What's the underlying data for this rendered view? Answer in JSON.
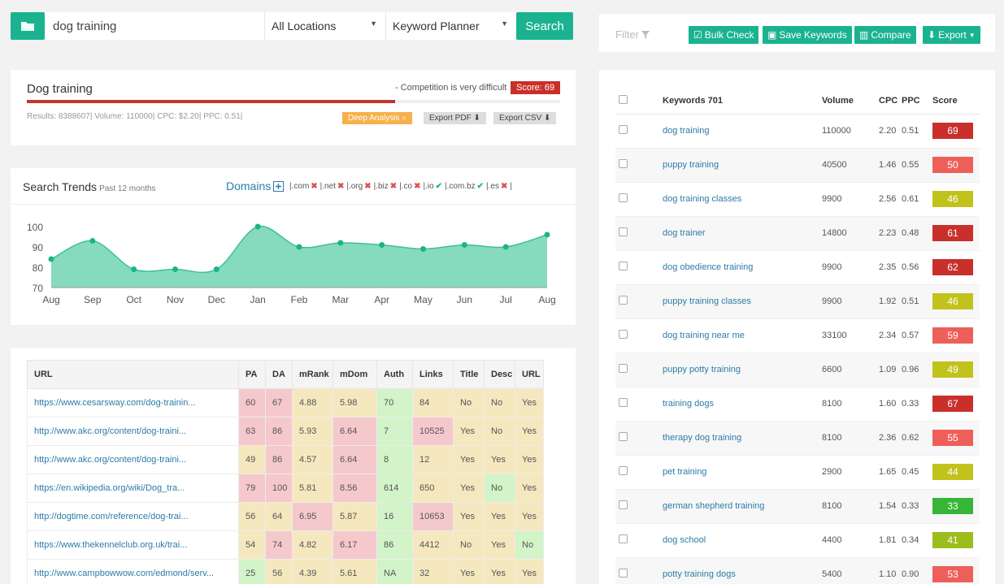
{
  "search": {
    "query": "dog training",
    "location": "All Locations",
    "tool": "Keyword Planner",
    "button": "Search"
  },
  "summary": {
    "keyword": "Dog training",
    "competition": "- Competition is very difficult",
    "score_label": "Score: 69",
    "score_value": 69,
    "stats": "Results: 8388607| Volume: 110000| CPC: $2.20| PPC: 0.51|",
    "buttons": {
      "deep": "Deep Analysis",
      "pdf": "Export PDF",
      "csv": "Export CSV"
    }
  },
  "trends": {
    "title": "Search Trends",
    "subtitle": "Past 12 months",
    "domains_label": "Domains",
    "domains": [
      {
        "name": "|.com",
        "available": false
      },
      {
        "name": "|.net",
        "available": false
      },
      {
        "name": "|.org",
        "available": false
      },
      {
        "name": "|.biz",
        "available": false
      },
      {
        "name": "|.co",
        "available": false
      },
      {
        "name": "|.io",
        "available": true
      },
      {
        "name": "|.com.bz",
        "available": true
      },
      {
        "name": "|.es",
        "available": false
      }
    ],
    "end_bar": "|"
  },
  "chart_data": {
    "type": "area",
    "categories": [
      "Aug",
      "Sep",
      "Oct",
      "Nov",
      "Dec",
      "Jan",
      "Feb",
      "Mar",
      "Apr",
      "May",
      "Jun",
      "Jul",
      "Aug"
    ],
    "values": [
      84,
      93,
      79,
      79,
      79,
      100,
      90,
      92,
      91,
      89,
      91,
      90,
      96
    ],
    "yticks": [
      100,
      90,
      80,
      70
    ],
    "ylim": [
      70,
      100
    ],
    "color": "#7fd9bb",
    "line_color": "#3fbf96",
    "point_color": "#1bb38f"
  },
  "url_table": {
    "headers": [
      "URL",
      "PA",
      "DA",
      "mRank",
      "mDom",
      "Auth",
      "Links",
      "Title",
      "Desc",
      "URL"
    ],
    "rows": [
      [
        "https://www.cesarsway.com/dog-trainin...",
        "60",
        "67",
        "4.88",
        "5.98",
        "70",
        "84",
        "No",
        "No",
        "Yes"
      ],
      [
        "http://www.akc.org/content/dog-traini...",
        "63",
        "86",
        "5.93",
        "6.64",
        "7",
        "10525",
        "Yes",
        "No",
        "Yes"
      ],
      [
        "http://www.akc.org/content/dog-traini...",
        "49",
        "86",
        "4.57",
        "6.64",
        "8",
        "12",
        "Yes",
        "Yes",
        "Yes"
      ],
      [
        "https://en.wikipedia.org/wiki/Dog_tra...",
        "79",
        "100",
        "5.81",
        "8.56",
        "614",
        "650",
        "Yes",
        "No",
        "Yes"
      ],
      [
        "http://dogtime.com/reference/dog-trai...",
        "56",
        "64",
        "6.95",
        "5.87",
        "16",
        "10653",
        "Yes",
        "Yes",
        "Yes"
      ],
      [
        "https://www.thekennelclub.org.uk/trai...",
        "54",
        "74",
        "4.82",
        "6.17",
        "86",
        "4412",
        "No",
        "Yes",
        "No"
      ],
      [
        "http://www.campbowwow.com/edmond/serv...",
        "25",
        "56",
        "4.39",
        "5.61",
        "NA",
        "32",
        "Yes",
        "Yes",
        "Yes"
      ]
    ],
    "colors": [
      [
        "",
        "red",
        "red",
        "yel",
        "yel",
        "grn",
        "yel",
        "yel",
        "yel",
        "yel"
      ],
      [
        "",
        "red",
        "red",
        "yel",
        "red",
        "grn",
        "red",
        "yel",
        "yel",
        "yel"
      ],
      [
        "",
        "yel",
        "red",
        "yel",
        "red",
        "grn",
        "yel",
        "yel",
        "yel",
        "yel"
      ],
      [
        "",
        "red",
        "red",
        "yel",
        "red",
        "grn",
        "yel",
        "yel",
        "grn",
        "yel"
      ],
      [
        "",
        "yel",
        "yel",
        "red",
        "yel",
        "grn",
        "red",
        "yel",
        "yel",
        "yel"
      ],
      [
        "",
        "yel",
        "red",
        "yel",
        "red",
        "grn",
        "yel",
        "yel",
        "yel",
        "grn"
      ],
      [
        "",
        "grn",
        "yel",
        "yel",
        "yel",
        "grn",
        "yel",
        "yel",
        "yel",
        "yel"
      ]
    ]
  },
  "toolbar": {
    "filter": "Filter",
    "bulk": "Bulk Check",
    "save": "Save Keywords",
    "compare": "Compare",
    "export": "Export"
  },
  "keywords": {
    "headers": [
      "Keywords 701",
      "Volume",
      "CPC",
      "PPC",
      "Score"
    ],
    "rows": [
      {
        "kw": "dog training",
        "volume": "110000",
        "cpc": "2.20",
        "ppc": "0.51",
        "score": "69",
        "color": "#c9302c"
      },
      {
        "kw": "puppy training",
        "volume": "40500",
        "cpc": "1.46",
        "ppc": "0.55",
        "score": "50",
        "color": "#ef5f5a"
      },
      {
        "kw": "dog training classes",
        "volume": "9900",
        "cpc": "2.56",
        "ppc": "0.61",
        "score": "46",
        "color": "#c2c21c"
      },
      {
        "kw": "dog trainer",
        "volume": "14800",
        "cpc": "2.23",
        "ppc": "0.48",
        "score": "61",
        "color": "#c9302c"
      },
      {
        "kw": "dog obedience training",
        "volume": "9900",
        "cpc": "2.35",
        "ppc": "0.56",
        "score": "62",
        "color": "#c9302c"
      },
      {
        "kw": "puppy training classes",
        "volume": "9900",
        "cpc": "1.92",
        "ppc": "0.51",
        "score": "46",
        "color": "#c2c21c"
      },
      {
        "kw": "dog training near me",
        "volume": "33100",
        "cpc": "2.34",
        "ppc": "0.57",
        "score": "59",
        "color": "#ef5f5a"
      },
      {
        "kw": "puppy potty training",
        "volume": "6600",
        "cpc": "1.09",
        "ppc": "0.96",
        "score": "49",
        "color": "#c2c21c"
      },
      {
        "kw": "training dogs",
        "volume": "8100",
        "cpc": "1.60",
        "ppc": "0.33",
        "score": "67",
        "color": "#c9302c"
      },
      {
        "kw": "therapy dog training",
        "volume": "8100",
        "cpc": "2.36",
        "ppc": "0.62",
        "score": "55",
        "color": "#ef5f5a"
      },
      {
        "kw": "pet training",
        "volume": "2900",
        "cpc": "1.65",
        "ppc": "0.45",
        "score": "44",
        "color": "#c2c21c"
      },
      {
        "kw": "german shepherd training",
        "volume": "8100",
        "cpc": "1.54",
        "ppc": "0.33",
        "score": "33",
        "color": "#36b536"
      },
      {
        "kw": "dog school",
        "volume": "4400",
        "cpc": "1.81",
        "ppc": "0.34",
        "score": "41",
        "color": "#9cbe1c"
      },
      {
        "kw": "potty training dogs",
        "volume": "5400",
        "cpc": "1.10",
        "ppc": "0.90",
        "score": "53",
        "color": "#ef5f5a"
      }
    ]
  }
}
